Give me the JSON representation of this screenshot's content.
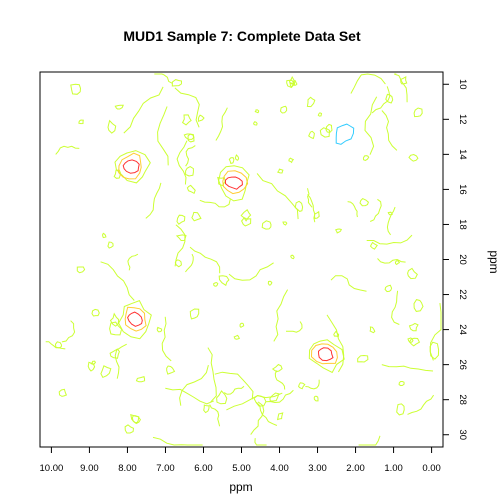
{
  "chart_data": {
    "type": "contour",
    "title": "MUD1 Sample 7: Complete Data Set",
    "xlabel": "ppm",
    "ylabel": "ppm",
    "x_axis": {
      "reversed": true,
      "lim": [
        10.3,
        -0.3
      ],
      "ticks": [
        10,
        9,
        8,
        7,
        6,
        5,
        4,
        3,
        2,
        1,
        0
      ],
      "tick_labels": [
        "10.00",
        "9.00",
        "8.00",
        "7.00",
        "6.00",
        "5.00",
        "4.00",
        "3.00",
        "2.00",
        "1.00",
        "0.00"
      ]
    },
    "y_axis": {
      "position": "right",
      "reversed": true,
      "lim": [
        9.3,
        30.7
      ],
      "ticks": [
        10,
        12,
        14,
        16,
        18,
        20,
        22,
        24,
        26,
        28,
        30
      ],
      "tick_labels": [
        "10",
        "12",
        "14",
        "16",
        "18",
        "20",
        "22",
        "24",
        "26",
        "28",
        "30"
      ]
    },
    "grid": false,
    "colors": {
      "low": "#ccff33",
      "mid": "#ffcc33",
      "high": "#ff3333",
      "negative": "#33ccff"
    },
    "peaks": [
      {
        "x": 7.9,
        "y": 14.7,
        "levels": [
          "low",
          "mid",
          "high"
        ]
      },
      {
        "x": 5.2,
        "y": 15.6,
        "levels": [
          "low",
          "mid",
          "high"
        ]
      },
      {
        "x": 7.8,
        "y": 23.4,
        "levels": [
          "low",
          "mid",
          "high"
        ]
      },
      {
        "x": 2.8,
        "y": 25.4,
        "levels": [
          "low",
          "mid",
          "high"
        ]
      },
      {
        "x": 2.3,
        "y": 12.8,
        "levels": [
          "negative"
        ]
      }
    ]
  }
}
